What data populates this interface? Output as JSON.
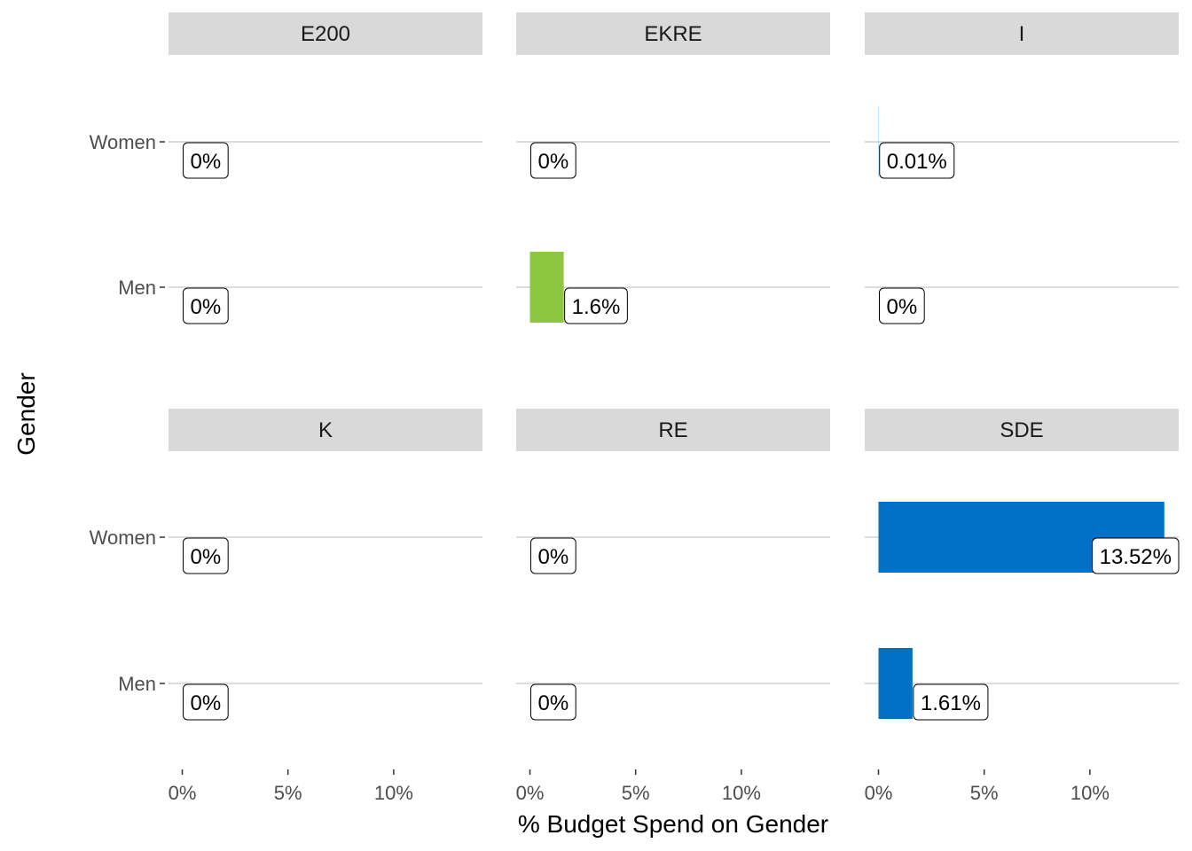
{
  "chart_data": {
    "type": "bar",
    "orientation": "horizontal",
    "facet_by": "party",
    "xlabel": "% Budget Spend on Gender",
    "ylabel": "Gender",
    "categories": [
      "Women",
      "Men"
    ],
    "x_ticks": [
      0,
      5,
      10
    ],
    "x_tick_labels": [
      "0%",
      "5%",
      "10%"
    ],
    "xlim": [
      -0.65,
      14.2
    ],
    "grid": "horizontal major only",
    "legend": "none",
    "facets": [
      {
        "name": "E200",
        "values": {
          "Women": 0,
          "Men": 0
        },
        "labels": {
          "Women": "0%",
          "Men": "0%"
        },
        "color": "#999999"
      },
      {
        "name": "EKRE",
        "values": {
          "Women": 0,
          "Men": 1.6
        },
        "labels": {
          "Women": "0%",
          "Men": "1.6%"
        },
        "color": "#8DC63F"
      },
      {
        "name": "I",
        "values": {
          "Women": 0.01,
          "Men": 0
        },
        "labels": {
          "Women": "0.01%",
          "Men": "0%"
        },
        "color": "#00AEEF"
      },
      {
        "name": "K",
        "values": {
          "Women": 0,
          "Men": 0
        },
        "labels": {
          "Women": "0%",
          "Men": "0%"
        },
        "color": "#FFD200"
      },
      {
        "name": "RE",
        "values": {
          "Women": 0,
          "Men": 0
        },
        "labels": {
          "Women": "0%",
          "Men": "0%"
        },
        "color": "#F7E600"
      },
      {
        "name": "SDE",
        "values": {
          "Women": 13.52,
          "Men": 1.61
        },
        "labels": {
          "Women": "13.52%",
          "Men": "1.61%"
        },
        "color": "#0072C6"
      }
    ]
  }
}
